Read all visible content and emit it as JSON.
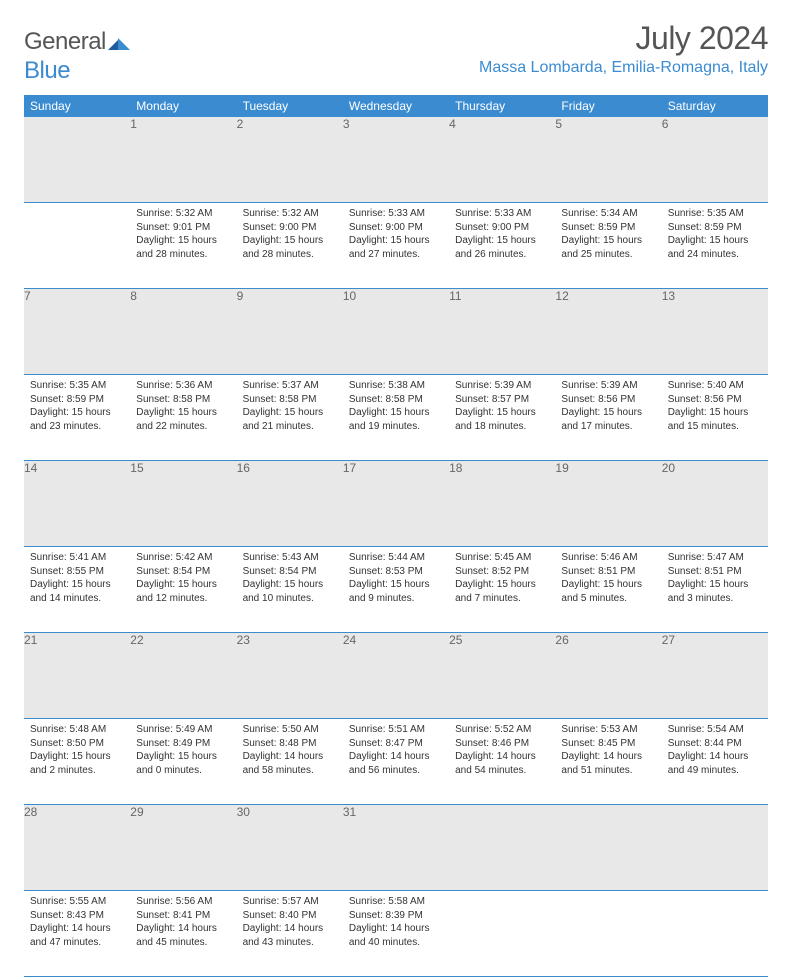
{
  "brand": {
    "name_gray": "General",
    "name_blue": "Blue"
  },
  "title": {
    "month_year": "July 2024",
    "location": "Massa Lombarda, Emilia-Romagna, Italy"
  },
  "colors": {
    "accent": "#3b8bd1",
    "header_gray": "#e8e8e8",
    "text": "#333333",
    "muted": "#666666"
  },
  "weekdays": [
    "Sunday",
    "Monday",
    "Tuesday",
    "Wednesday",
    "Thursday",
    "Friday",
    "Saturday"
  ],
  "weeks": [
    [
      {
        "num": "",
        "sunrise": "",
        "sunset": "",
        "daylight1": "",
        "daylight2": ""
      },
      {
        "num": "1",
        "sunrise": "Sunrise: 5:32 AM",
        "sunset": "Sunset: 9:01 PM",
        "daylight1": "Daylight: 15 hours",
        "daylight2": "and 28 minutes."
      },
      {
        "num": "2",
        "sunrise": "Sunrise: 5:32 AM",
        "sunset": "Sunset: 9:00 PM",
        "daylight1": "Daylight: 15 hours",
        "daylight2": "and 28 minutes."
      },
      {
        "num": "3",
        "sunrise": "Sunrise: 5:33 AM",
        "sunset": "Sunset: 9:00 PM",
        "daylight1": "Daylight: 15 hours",
        "daylight2": "and 27 minutes."
      },
      {
        "num": "4",
        "sunrise": "Sunrise: 5:33 AM",
        "sunset": "Sunset: 9:00 PM",
        "daylight1": "Daylight: 15 hours",
        "daylight2": "and 26 minutes."
      },
      {
        "num": "5",
        "sunrise": "Sunrise: 5:34 AM",
        "sunset": "Sunset: 8:59 PM",
        "daylight1": "Daylight: 15 hours",
        "daylight2": "and 25 minutes."
      },
      {
        "num": "6",
        "sunrise": "Sunrise: 5:35 AM",
        "sunset": "Sunset: 8:59 PM",
        "daylight1": "Daylight: 15 hours",
        "daylight2": "and 24 minutes."
      }
    ],
    [
      {
        "num": "7",
        "sunrise": "Sunrise: 5:35 AM",
        "sunset": "Sunset: 8:59 PM",
        "daylight1": "Daylight: 15 hours",
        "daylight2": "and 23 minutes."
      },
      {
        "num": "8",
        "sunrise": "Sunrise: 5:36 AM",
        "sunset": "Sunset: 8:58 PM",
        "daylight1": "Daylight: 15 hours",
        "daylight2": "and 22 minutes."
      },
      {
        "num": "9",
        "sunrise": "Sunrise: 5:37 AM",
        "sunset": "Sunset: 8:58 PM",
        "daylight1": "Daylight: 15 hours",
        "daylight2": "and 21 minutes."
      },
      {
        "num": "10",
        "sunrise": "Sunrise: 5:38 AM",
        "sunset": "Sunset: 8:58 PM",
        "daylight1": "Daylight: 15 hours",
        "daylight2": "and 19 minutes."
      },
      {
        "num": "11",
        "sunrise": "Sunrise: 5:39 AM",
        "sunset": "Sunset: 8:57 PM",
        "daylight1": "Daylight: 15 hours",
        "daylight2": "and 18 minutes."
      },
      {
        "num": "12",
        "sunrise": "Sunrise: 5:39 AM",
        "sunset": "Sunset: 8:56 PM",
        "daylight1": "Daylight: 15 hours",
        "daylight2": "and 17 minutes."
      },
      {
        "num": "13",
        "sunrise": "Sunrise: 5:40 AM",
        "sunset": "Sunset: 8:56 PM",
        "daylight1": "Daylight: 15 hours",
        "daylight2": "and 15 minutes."
      }
    ],
    [
      {
        "num": "14",
        "sunrise": "Sunrise: 5:41 AM",
        "sunset": "Sunset: 8:55 PM",
        "daylight1": "Daylight: 15 hours",
        "daylight2": "and 14 minutes."
      },
      {
        "num": "15",
        "sunrise": "Sunrise: 5:42 AM",
        "sunset": "Sunset: 8:54 PM",
        "daylight1": "Daylight: 15 hours",
        "daylight2": "and 12 minutes."
      },
      {
        "num": "16",
        "sunrise": "Sunrise: 5:43 AM",
        "sunset": "Sunset: 8:54 PM",
        "daylight1": "Daylight: 15 hours",
        "daylight2": "and 10 minutes."
      },
      {
        "num": "17",
        "sunrise": "Sunrise: 5:44 AM",
        "sunset": "Sunset: 8:53 PM",
        "daylight1": "Daylight: 15 hours",
        "daylight2": "and 9 minutes."
      },
      {
        "num": "18",
        "sunrise": "Sunrise: 5:45 AM",
        "sunset": "Sunset: 8:52 PM",
        "daylight1": "Daylight: 15 hours",
        "daylight2": "and 7 minutes."
      },
      {
        "num": "19",
        "sunrise": "Sunrise: 5:46 AM",
        "sunset": "Sunset: 8:51 PM",
        "daylight1": "Daylight: 15 hours",
        "daylight2": "and 5 minutes."
      },
      {
        "num": "20",
        "sunrise": "Sunrise: 5:47 AM",
        "sunset": "Sunset: 8:51 PM",
        "daylight1": "Daylight: 15 hours",
        "daylight2": "and 3 minutes."
      }
    ],
    [
      {
        "num": "21",
        "sunrise": "Sunrise: 5:48 AM",
        "sunset": "Sunset: 8:50 PM",
        "daylight1": "Daylight: 15 hours",
        "daylight2": "and 2 minutes."
      },
      {
        "num": "22",
        "sunrise": "Sunrise: 5:49 AM",
        "sunset": "Sunset: 8:49 PM",
        "daylight1": "Daylight: 15 hours",
        "daylight2": "and 0 minutes."
      },
      {
        "num": "23",
        "sunrise": "Sunrise: 5:50 AM",
        "sunset": "Sunset: 8:48 PM",
        "daylight1": "Daylight: 14 hours",
        "daylight2": "and 58 minutes."
      },
      {
        "num": "24",
        "sunrise": "Sunrise: 5:51 AM",
        "sunset": "Sunset: 8:47 PM",
        "daylight1": "Daylight: 14 hours",
        "daylight2": "and 56 minutes."
      },
      {
        "num": "25",
        "sunrise": "Sunrise: 5:52 AM",
        "sunset": "Sunset: 8:46 PM",
        "daylight1": "Daylight: 14 hours",
        "daylight2": "and 54 minutes."
      },
      {
        "num": "26",
        "sunrise": "Sunrise: 5:53 AM",
        "sunset": "Sunset: 8:45 PM",
        "daylight1": "Daylight: 14 hours",
        "daylight2": "and 51 minutes."
      },
      {
        "num": "27",
        "sunrise": "Sunrise: 5:54 AM",
        "sunset": "Sunset: 8:44 PM",
        "daylight1": "Daylight: 14 hours",
        "daylight2": "and 49 minutes."
      }
    ],
    [
      {
        "num": "28",
        "sunrise": "Sunrise: 5:55 AM",
        "sunset": "Sunset: 8:43 PM",
        "daylight1": "Daylight: 14 hours",
        "daylight2": "and 47 minutes."
      },
      {
        "num": "29",
        "sunrise": "Sunrise: 5:56 AM",
        "sunset": "Sunset: 8:41 PM",
        "daylight1": "Daylight: 14 hours",
        "daylight2": "and 45 minutes."
      },
      {
        "num": "30",
        "sunrise": "Sunrise: 5:57 AM",
        "sunset": "Sunset: 8:40 PM",
        "daylight1": "Daylight: 14 hours",
        "daylight2": "and 43 minutes."
      },
      {
        "num": "31",
        "sunrise": "Sunrise: 5:58 AM",
        "sunset": "Sunset: 8:39 PM",
        "daylight1": "Daylight: 14 hours",
        "daylight2": "and 40 minutes."
      },
      {
        "num": "",
        "sunrise": "",
        "sunset": "",
        "daylight1": "",
        "daylight2": ""
      },
      {
        "num": "",
        "sunrise": "",
        "sunset": "",
        "daylight1": "",
        "daylight2": ""
      },
      {
        "num": "",
        "sunrise": "",
        "sunset": "",
        "daylight1": "",
        "daylight2": ""
      }
    ]
  ]
}
